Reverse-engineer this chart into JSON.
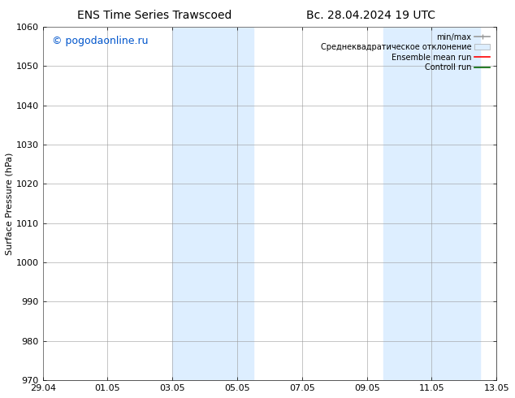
{
  "title_left": "ENS Time Series Trawscoed",
  "title_right": "Вс. 28.04.2024 19 UTC",
  "ylabel": "Surface Pressure (hPa)",
  "ylim": [
    970,
    1060
  ],
  "yticks": [
    970,
    980,
    990,
    1000,
    1010,
    1020,
    1030,
    1040,
    1050,
    1060
  ],
  "xtick_labels": [
    "29.04",
    "01.05",
    "03.05",
    "05.05",
    "07.05",
    "09.05",
    "11.05",
    "13.05"
  ],
  "xtick_positions": [
    0,
    2,
    4,
    6,
    8,
    10,
    12,
    14
  ],
  "xlim": [
    0,
    14
  ],
  "shaded_bands": [
    {
      "x_start": 4.0,
      "x_end": 6.5
    },
    {
      "x_start": 10.5,
      "x_end": 13.5
    }
  ],
  "watermark_text": "© pogodaonline.ru",
  "watermark_color": "#0055cc",
  "background_color": "#ffffff",
  "plot_bg_color": "#ffffff",
  "shade_color": "#ddeeff",
  "grid_color": "#999999",
  "legend_labels": [
    "min/max",
    "Среднеквадратическое отклонение",
    "Ensemble mean run",
    "Controll run"
  ],
  "legend_colors": [
    "#aaaaaa",
    "#ddeeff",
    "#ff0000",
    "#006600"
  ],
  "title_fontsize": 10,
  "axis_label_fontsize": 8,
  "tick_fontsize": 8,
  "legend_fontsize": 7,
  "watermark_fontsize": 9
}
